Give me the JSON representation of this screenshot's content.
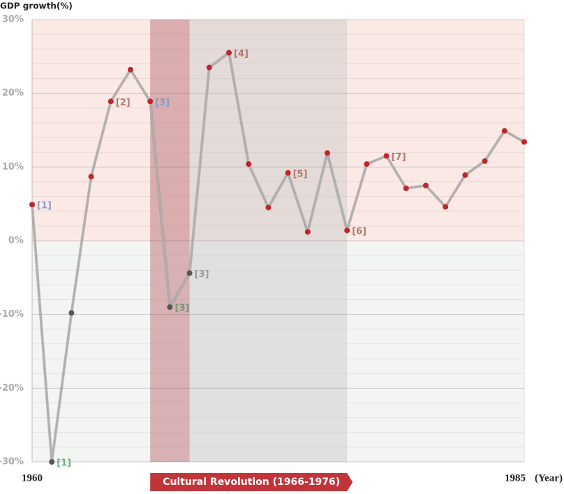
{
  "chart_data": {
    "type": "line",
    "y_label": "GDP growth(%)",
    "x_label": "(Year)",
    "x": [
      1960,
      1961,
      1962,
      1963,
      1964,
      1965,
      1966,
      1967,
      1968,
      1969,
      1970,
      1971,
      1972,
      1973,
      1974,
      1975,
      1976,
      1977,
      1978,
      1979,
      1980,
      1981,
      1982,
      1983,
      1984,
      1985
    ],
    "series": [
      {
        "name": "GDP growth",
        "color": "#b0b0b0",
        "values": [
          4.9,
          -30,
          -9.8,
          8.7,
          18.9,
          23.2,
          18.9,
          -9.0,
          -4.4,
          23.5,
          25.5,
          10.4,
          4.5,
          9.2,
          1.2,
          11.9,
          1.4,
          10.4,
          11.5,
          7.1,
          7.5,
          4.6,
          8.9,
          10.8,
          14.9,
          13.4
        ]
      }
    ],
    "point_color": "#c0252b",
    "negative_point_color": "#555555",
    "xlim": [
      1960,
      1985
    ],
    "xticks": [
      1960,
      1985
    ],
    "ylim": [
      -30,
      30
    ],
    "yticks": [
      {
        "value": -30,
        "label": "-30%"
      },
      {
        "value": -20,
        "label": "-20%"
      },
      {
        "value": -10,
        "label": "-10%"
      },
      {
        "value": 0,
        "label": "0%"
      },
      {
        "value": 10,
        "label": "10%"
      },
      {
        "value": 20,
        "label": "20%"
      },
      {
        "value": 30,
        "label": "30%"
      }
    ],
    "minor_grid_step": 2,
    "positive_background": "#fbe9e6",
    "negative_background": "#f3f5f3",
    "shaded_ranges": [
      {
        "from": 1966,
        "to": 1976,
        "color": "rgba(200,200,200,0.45)",
        "label": "Cultural Revolution (1966-1976)"
      },
      {
        "from": 1966,
        "to": 1968,
        "color": "rgba(200,90,100,0.35)"
      }
    ],
    "annotations": [
      {
        "x": 1960,
        "text": "[1]",
        "color": "#8a9cc4"
      },
      {
        "x": 1961,
        "text": "[1]",
        "color": "#6fb08a"
      },
      {
        "x": 1964,
        "text": "[2]",
        "color": "#b07a6e"
      },
      {
        "x": 1966,
        "text": "[3]",
        "color": "#8a9cc4"
      },
      {
        "x": 1967,
        "text": "[3]",
        "color": "#6f9a6f"
      },
      {
        "x": 1968,
        "text": "[3]",
        "color": "#999999"
      },
      {
        "x": 1970,
        "text": "[4]",
        "color": "#b07a6e"
      },
      {
        "x": 1973,
        "text": "[5]",
        "color": "#b07a6e"
      },
      {
        "x": 1976,
        "text": "[6]",
        "color": "#b07a6e"
      },
      {
        "x": 1978,
        "text": "[7]",
        "color": "#b07a6e"
      }
    ]
  }
}
